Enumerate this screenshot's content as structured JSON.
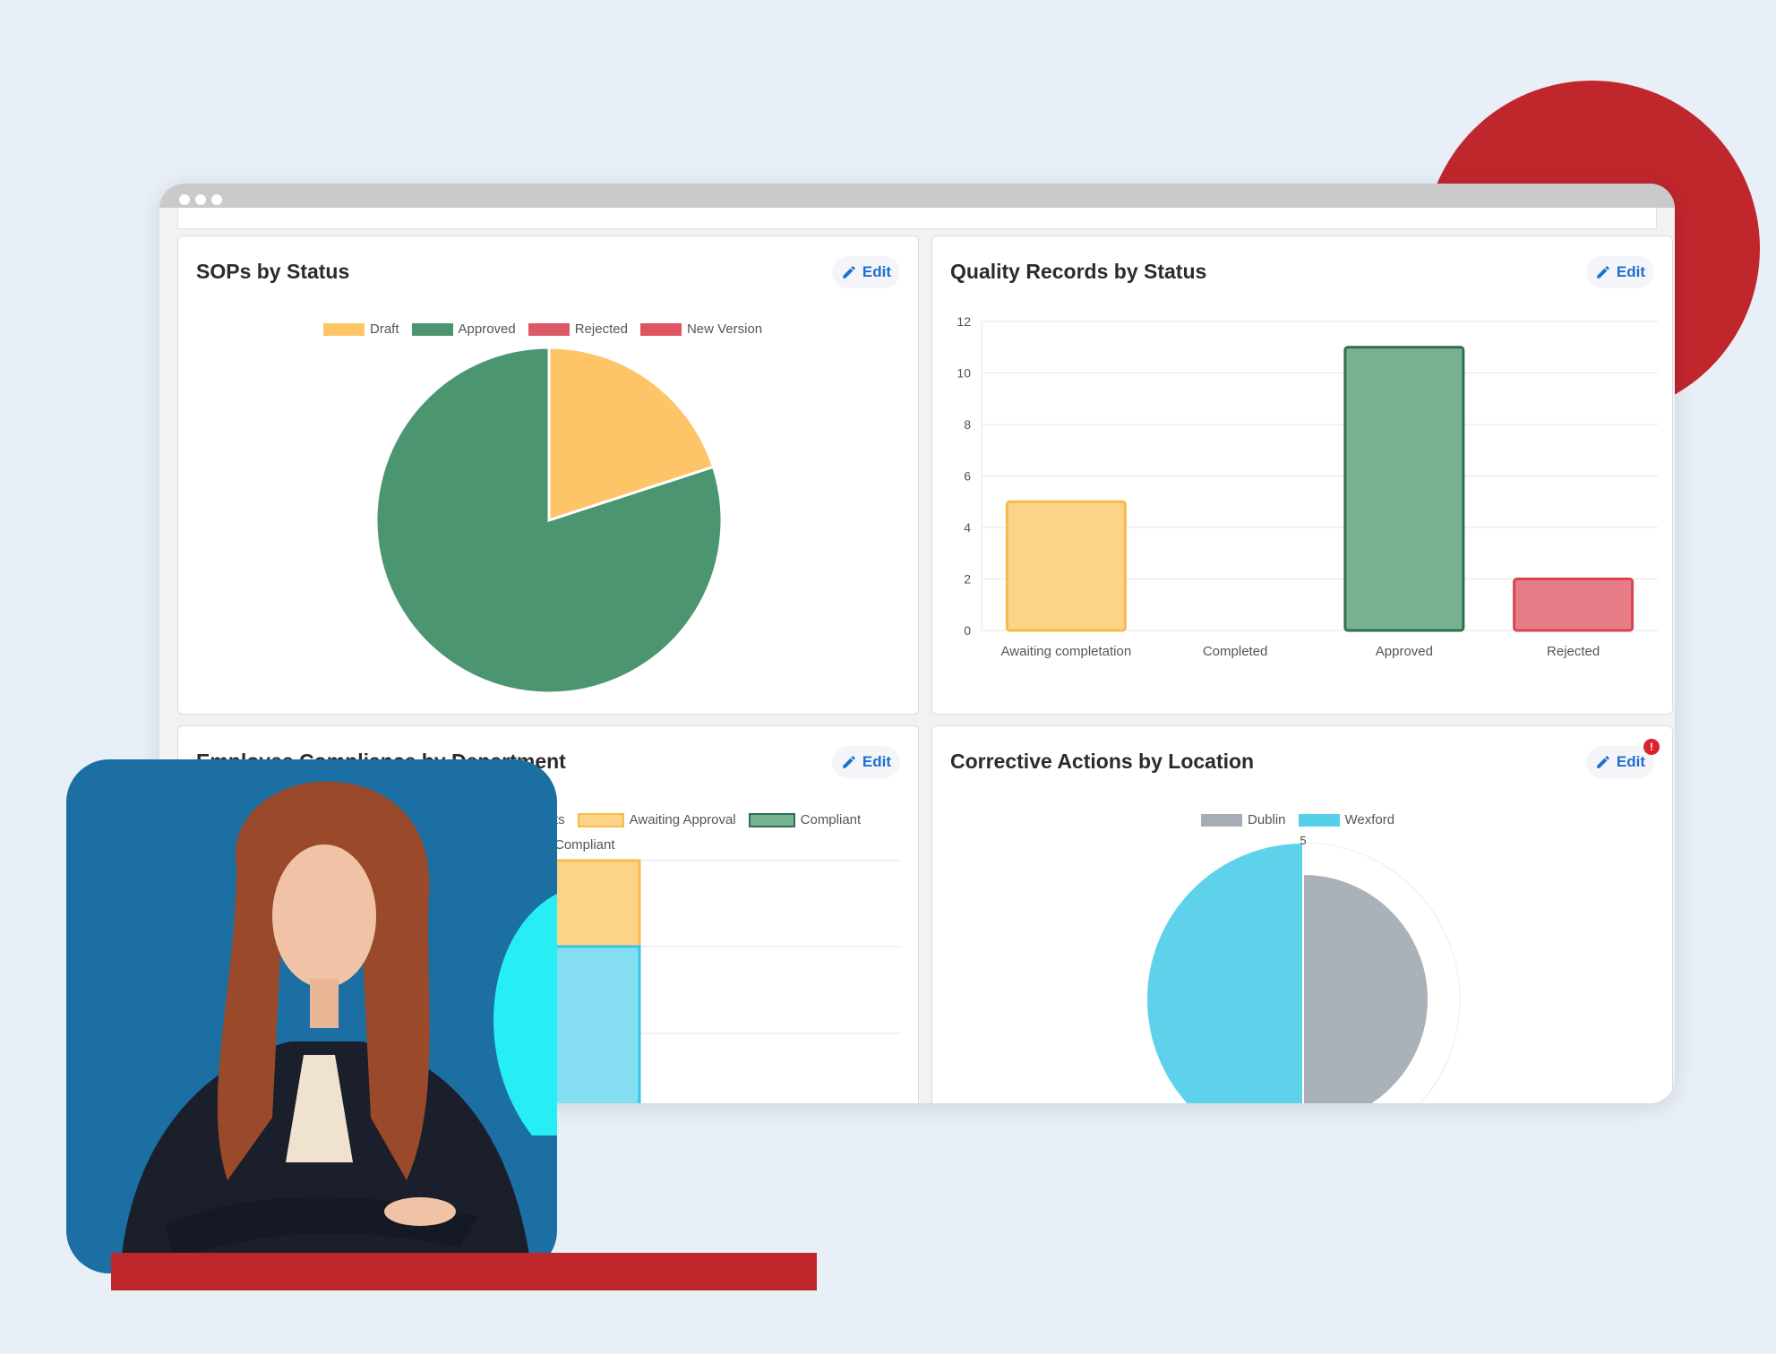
{
  "colors": {
    "draft": "#fdc468",
    "approved": "#4b9571",
    "rejected": "#dc5a67",
    "new_version": "#e05561",
    "dublin": "#a6adb4",
    "wexford": "#55cfea",
    "accent": "#1e6fd4",
    "brand_red": "#c0272d"
  },
  "edit_label": "Edit",
  "panels": {
    "sops": {
      "title": "SOPs by Status",
      "legend": [
        "Draft",
        "Approved",
        "Rejected",
        "New Version"
      ]
    },
    "quality": {
      "title": "Quality Records by Status"
    },
    "compliance": {
      "title": "Employee Compliance by Department",
      "legend": [
        "ts",
        "Awaiting Approval",
        "Compliant",
        "Compliant"
      ]
    },
    "corrective": {
      "title": "Corrective Actions by Location",
      "legend": [
        "Dublin",
        "Wexford"
      ],
      "badge": "!"
    }
  },
  "chart_data": [
    {
      "type": "pie",
      "title": "SOPs by Status",
      "categories": [
        "Draft",
        "Approved",
        "Rejected",
        "New Version"
      ],
      "values": [
        2,
        8,
        0,
        0
      ],
      "legend": "top"
    },
    {
      "type": "bar",
      "title": "Quality Records by Status",
      "categories": [
        "Awaiting completation",
        "Completed",
        "Approved",
        "Rejected"
      ],
      "values": [
        5,
        0,
        11,
        2
      ],
      "ylim": [
        0,
        12
      ],
      "yticks": [
        0,
        2,
        4,
        6,
        8,
        10,
        12
      ],
      "grid": true
    },
    {
      "type": "bar",
      "title": "Employee Compliance by Department",
      "legend": "top"
    },
    {
      "type": "pie",
      "title": "Corrective Actions by Location",
      "categories": [
        "Dublin",
        "Wexford"
      ],
      "values": [
        4,
        5
      ],
      "rmax": 5,
      "tick_label": "5",
      "legend": "top"
    }
  ]
}
